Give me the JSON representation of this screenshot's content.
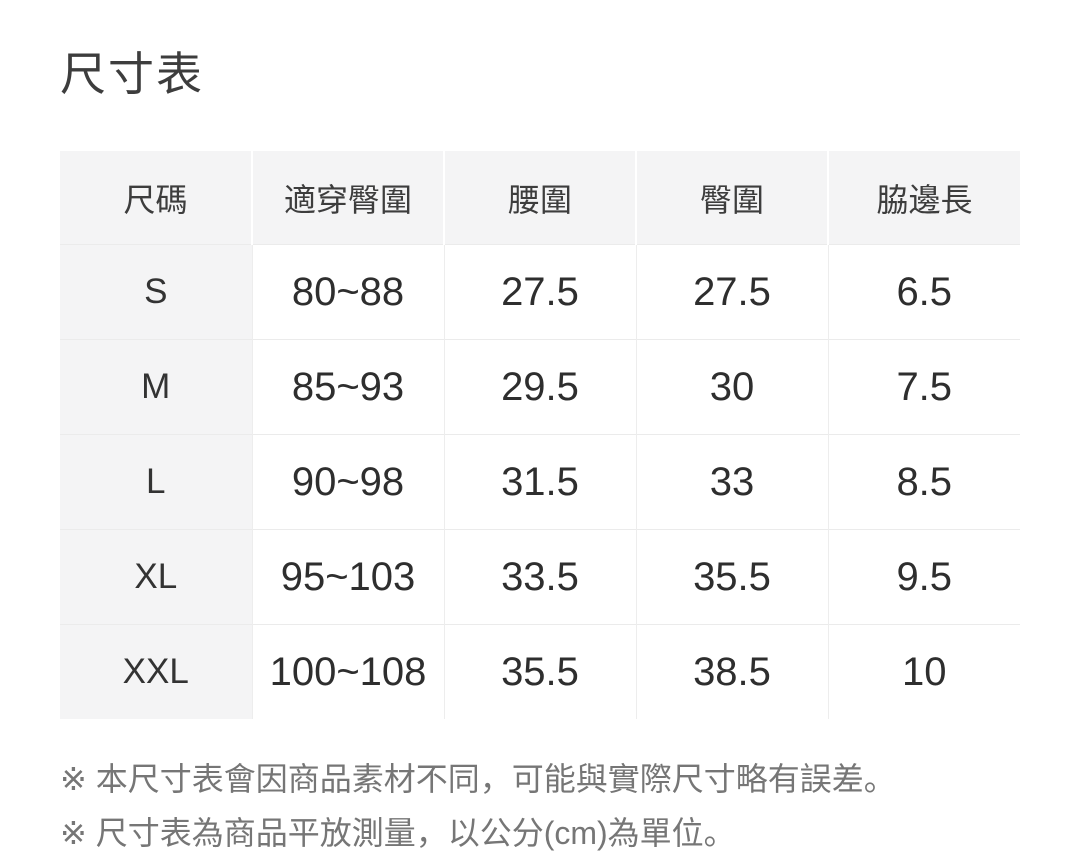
{
  "page": {
    "title": "尺寸表"
  },
  "size_table": {
    "columns": [
      "尺碼",
      "適穿臀圍",
      "腰圍",
      "臀圍",
      "脇邊長"
    ],
    "rows": [
      {
        "size": "S",
        "values": [
          "80~88",
          "27.5",
          "27.5",
          "6.5"
        ]
      },
      {
        "size": "M",
        "values": [
          "85~93",
          "29.5",
          "30",
          "7.5"
        ]
      },
      {
        "size": "L",
        "values": [
          "90~98",
          "31.5",
          "33",
          "8.5"
        ]
      },
      {
        "size": "XL",
        "values": [
          "95~103",
          "33.5",
          "35.5",
          "9.5"
        ]
      },
      {
        "size": "XXL",
        "values": [
          "100~108",
          "35.5",
          "38.5",
          "10"
        ]
      }
    ]
  },
  "footnotes": [
    "※ 本尺寸表會因商品素材不同，可能與實際尺寸略有誤差。",
    "※ 尺寸表為商品平放測量，以公分(cm)為單位。"
  ],
  "colors": {
    "header_background": "#f4f4f5",
    "row_divider": "#ebebeb",
    "header_divider": "#ffffff",
    "title_text": "#3d3d3d",
    "data_text": "#2e2e2e",
    "footnote_text": "#767676"
  }
}
